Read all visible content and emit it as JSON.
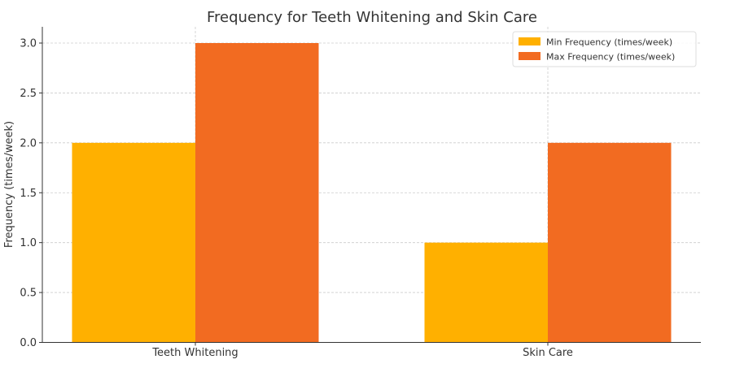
{
  "chart_data": {
    "type": "bar",
    "title": "Frequency for Teeth Whitening and Skin Care",
    "xlabel": "",
    "ylabel": "Frequency (times/week)",
    "categories": [
      "Teeth Whitening",
      "Skin Care"
    ],
    "series": [
      {
        "name": "Min Frequency (times/week)",
        "color": "#FFB000",
        "values": [
          2,
          1
        ]
      },
      {
        "name": "Max Frequency (times/week)",
        "color": "#F26B21",
        "values": [
          3,
          2
        ]
      }
    ],
    "ylim": [
      0,
      3.15
    ],
    "yticks": [
      0.0,
      0.5,
      1.0,
      1.5,
      2.0,
      2.5,
      3.0
    ],
    "ytick_labels": [
      "0.0",
      "0.5",
      "1.0",
      "1.5",
      "2.0",
      "2.5",
      "3.0"
    ],
    "grid": true,
    "legend_position": "top-right"
  }
}
